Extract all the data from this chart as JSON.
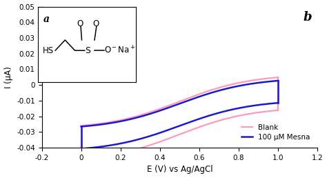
{
  "title_a": "a",
  "title_b": "b",
  "xlabel": "E (V) vs Ag/AgCl",
  "ylabel": "I (μA)",
  "xlim": [
    -0.2,
    1.2
  ],
  "ylim": [
    -0.04,
    0.05
  ],
  "xticks": [
    -0.2,
    0.0,
    0.2,
    0.4,
    0.6,
    0.8,
    1.0,
    1.2
  ],
  "yticks": [
    -0.04,
    -0.03,
    -0.02,
    -0.01,
    0,
    0.01,
    0.02,
    0.03,
    0.04,
    0.05
  ],
  "blank_color": "#FF99BB",
  "mesna_color": "#1a1aCC",
  "legend_labels": [
    "Blank",
    "100 μM Mesna"
  ],
  "background_color": "#ffffff"
}
